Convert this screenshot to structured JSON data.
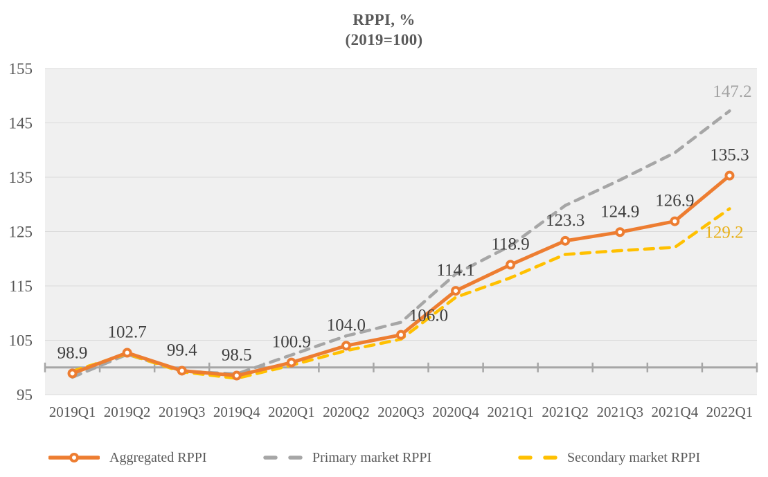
{
  "title": {
    "line1": "RPPI, %",
    "line2": "(2019=100)"
  },
  "chart_data": {
    "type": "line",
    "title": "RPPI, % (2019=100)",
    "categories": [
      "2019Q1",
      "2019Q2",
      "2019Q3",
      "2019Q4",
      "2020Q1",
      "2020Q2",
      "2020Q3",
      "2020Q4",
      "2021Q1",
      "2021Q2",
      "2021Q3",
      "2021Q4",
      "2022Q1"
    ],
    "ylim": [
      95,
      155
    ],
    "y_ticks": [
      95,
      105,
      115,
      125,
      135,
      145,
      155
    ],
    "baseline_value": 100,
    "grid": true,
    "legend_position": "bottom",
    "plot_bg": "#f0f0f0",
    "grid_color": "#dadada",
    "baseline_color": "#a6a6a6",
    "axis_text_color": "#595959",
    "series": [
      {
        "name": "Aggregated RPPI",
        "color": "#ED7D31",
        "line_style": "solid",
        "marker": true,
        "values": [
          98.9,
          102.7,
          99.4,
          98.5,
          100.9,
          104.0,
          106.0,
          114.1,
          118.9,
          123.3,
          124.9,
          126.9,
          135.3
        ],
        "point_labels": [
          "98.9",
          "102.7",
          "99.4",
          "98.5",
          "100.9",
          "104.0",
          "106.0",
          "114.1",
          "118.9",
          "123.3",
          "124.9",
          "126.9",
          "135.3"
        ],
        "label_color": "#3f3f3f"
      },
      {
        "name": "Primary market RPPI",
        "color": "#A6A6A6",
        "line_style": "dashed",
        "marker": false,
        "values": [
          98.2,
          102.4,
          99.3,
          98.8,
          102.3,
          105.8,
          108.3,
          117.2,
          122.4,
          129.8,
          134.5,
          139.5,
          147.2
        ],
        "point_labels": [
          null,
          null,
          null,
          null,
          null,
          null,
          null,
          null,
          null,
          null,
          null,
          null,
          "147.2"
        ],
        "label_color": "#a3a3a3"
      },
      {
        "name": "Secondary market RPPI",
        "color": "#FFC000",
        "line_style": "dashed",
        "marker": false,
        "values": [
          99.3,
          102.5,
          99.2,
          98.0,
          100.4,
          103.1,
          105.2,
          112.9,
          116.5,
          120.8,
          121.5,
          122.1,
          129.2
        ],
        "point_labels": [
          null,
          null,
          null,
          null,
          null,
          null,
          null,
          null,
          null,
          null,
          null,
          null,
          "129.2"
        ],
        "label_color": "#e8b019"
      }
    ]
  },
  "legend": {
    "items": [
      {
        "label": "Aggregated RPPI"
      },
      {
        "label": "Primary market RPPI"
      },
      {
        "label": "Secondary market RPPI"
      }
    ]
  }
}
